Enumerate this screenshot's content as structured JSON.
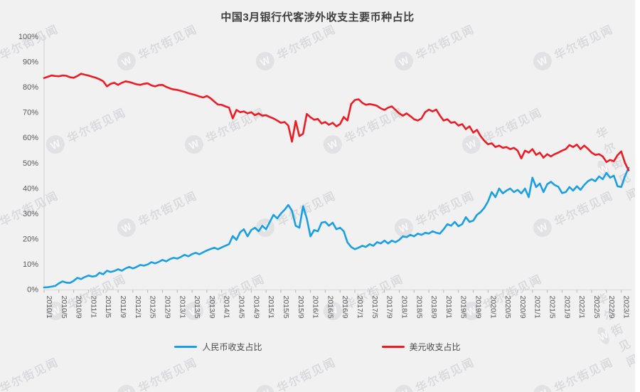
{
  "watermark": {
    "text": "华尔街见闻",
    "badge_glyph": "W"
  },
  "chart_data": {
    "type": "line",
    "title": "中国3月银行代客涉外收支主要币种占比",
    "xlabel": "",
    "ylabel": "",
    "ylim": [
      0,
      100
    ],
    "y_tick_labels": [
      "0%",
      "10%",
      "20%",
      "30%",
      "40%",
      "50%",
      "60%",
      "70%",
      "80%",
      "90%",
      "100%"
    ],
    "x_start": "2010/1",
    "x_end": "2023/3",
    "x_freq_months": 1,
    "x_tick_every_n_points": 4,
    "x_tick_labels": [
      "2010/1",
      "2010/5",
      "2010/9",
      "2011/1",
      "2011/5",
      "2011/9",
      "2012/1",
      "2012/5",
      "2012/9",
      "2013/1",
      "2013/5",
      "2013/9",
      "2014/1",
      "2014/5",
      "2014/9",
      "2015/1",
      "2015/5",
      "2015/9",
      "2016/1",
      "2016/5",
      "2016/9",
      "2017/1",
      "2017/5",
      "2017/9",
      "2018/1",
      "2018/5",
      "2018/9",
      "2019/1",
      "2019/5",
      "2019/9",
      "2020/1",
      "2020/5",
      "2020/9",
      "2021/1",
      "2021/5",
      "2021/9",
      "2022/1",
      "2022/5",
      "2022/9",
      "2023/1"
    ],
    "grid": false,
    "legend_position": "bottom",
    "series": [
      {
        "name": "人民币收支占比",
        "color": "#1aa0e2",
        "values": [
          0.7,
          0.8,
          1.0,
          1.3,
          2.3,
          3.1,
          2.6,
          2.5,
          3.3,
          4.5,
          4.0,
          4.8,
          5.4,
          5.0,
          5.2,
          6.5,
          5.9,
          7.3,
          6.8,
          7.2,
          7.9,
          7.3,
          8.2,
          8.8,
          8.2,
          8.8,
          9.6,
          9.3,
          9.8,
          10.7,
          10.2,
          10.8,
          11.6,
          11.0,
          11.9,
          12.4,
          12.1,
          12.8,
          13.6,
          13.0,
          13.9,
          14.4,
          13.8,
          14.6,
          15.3,
          15.9,
          16.4,
          15.8,
          16.5,
          17.2,
          17.8,
          21.0,
          19.5,
          22.5,
          23.7,
          20.9,
          23.4,
          24.3,
          22.9,
          25.1,
          23.7,
          26.6,
          29.4,
          28.0,
          29.9,
          31.4,
          33.3,
          31.0,
          25.1,
          24.3,
          32.8,
          28.0,
          20.9,
          23.4,
          22.9,
          26.3,
          26.6,
          25.1,
          26.3,
          23.7,
          24.3,
          22.9,
          18.5,
          16.7,
          15.8,
          16.4,
          17.2,
          16.7,
          17.8,
          17.2,
          18.6,
          18.1,
          19.2,
          18.1,
          19.2,
          18.6,
          19.5,
          20.9,
          20.6,
          21.5,
          20.9,
          22.0,
          21.5,
          22.3,
          22.0,
          22.9,
          22.3,
          22.0,
          23.7,
          25.7,
          25.1,
          26.6,
          24.9,
          25.7,
          28.5,
          26.6,
          27.1,
          29.4,
          30.5,
          32.2,
          34.7,
          38.4,
          36.4,
          39.8,
          37.9,
          39.0,
          39.8,
          38.4,
          39.3,
          37.9,
          39.8,
          36.4,
          44.1,
          40.4,
          41.8,
          38.4,
          41.5,
          42.5,
          41.2,
          40.5,
          38.0,
          38.4,
          40.4,
          39.0,
          40.7,
          39.3,
          41.2,
          42.7,
          43.5,
          42.7,
          44.6,
          43.5,
          46.0,
          44.1,
          44.9,
          40.7,
          40.4,
          44.6,
          48.0
        ]
      },
      {
        "name": "美元收支占比",
        "color": "#ec1c24",
        "values": [
          83.5,
          84.0,
          84.5,
          84.3,
          84.2,
          84.5,
          84.4,
          83.8,
          83.6,
          84.3,
          85.2,
          84.8,
          84.5,
          84.0,
          83.6,
          83.0,
          82.2,
          80.2,
          81.2,
          81.6,
          80.8,
          81.6,
          82.2,
          81.9,
          81.5,
          81.0,
          80.8,
          81.2,
          81.4,
          80.6,
          80.2,
          80.7,
          80.8,
          80.0,
          79.4,
          79.0,
          78.8,
          78.4,
          78.0,
          77.5,
          77.1,
          76.7,
          76.2,
          75.8,
          76.4,
          75.5,
          74.2,
          73.0,
          72.9,
          72.3,
          71.8,
          67.5,
          70.9,
          70.0,
          70.3,
          69.5,
          70.0,
          68.8,
          69.5,
          68.6,
          68.8,
          68.1,
          67.5,
          66.7,
          65.8,
          66.1,
          64.7,
          58.3,
          66.5,
          60.5,
          61.5,
          69.3,
          68.0,
          67.0,
          67.3,
          65.5,
          66.1,
          65.0,
          65.8,
          64.4,
          65.3,
          68.1,
          66.7,
          73.2,
          74.8,
          75.1,
          73.7,
          72.9,
          73.2,
          72.9,
          72.5,
          71.5,
          70.9,
          71.8,
          72.3,
          70.9,
          69.5,
          68.6,
          69.5,
          68.4,
          67.2,
          66.7,
          67.5,
          70.0,
          71.0,
          70.3,
          71.0,
          68.6,
          66.7,
          67.2,
          65.8,
          66.1,
          64.7,
          65.3,
          63.3,
          64.4,
          61.9,
          63.0,
          60.5,
          58.7,
          57.3,
          57.7,
          56.2,
          56.8,
          55.9,
          56.2,
          55.4,
          55.9,
          54.8,
          51.7,
          54.8,
          54.0,
          55.4,
          53.1,
          54.0,
          52.0,
          53.4,
          52.5,
          53.4,
          54.0,
          54.8,
          55.4,
          57.0,
          56.2,
          57.2,
          55.4,
          56.8,
          55.5,
          54.0,
          53.1,
          53.4,
          52.5,
          50.3,
          51.1,
          50.6,
          53.0,
          54.5,
          50.0,
          47.0
        ]
      }
    ]
  }
}
